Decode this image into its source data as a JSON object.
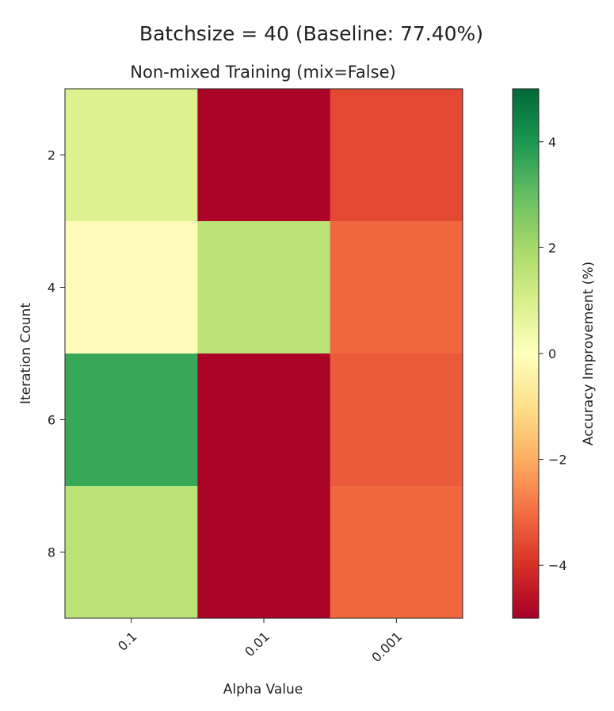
{
  "chart_data": {
    "type": "heatmap",
    "suptitle": "Batchsize = 40 (Baseline: 77.40%)",
    "title": "Non-mixed Training (mix=False)",
    "xlabel": "Alpha Value",
    "ylabel": "Iteration Count",
    "x_categories": [
      "0.1",
      "0.01",
      "0.001"
    ],
    "y_categories": [
      "2",
      "4",
      "6",
      "8"
    ],
    "values": [
      [
        0.9,
        -4.9,
        -3.6
      ],
      [
        -0.1,
        1.6,
        -3.1
      ],
      [
        3.6,
        -4.9,
        -3.3
      ],
      [
        1.6,
        -4.9,
        -3.1
      ]
    ],
    "colorbar": {
      "label": "Accuracy Improvement (%)",
      "range": [
        -5,
        5
      ],
      "ticks": [
        4,
        2,
        0,
        -2,
        -4
      ],
      "tick_labels": [
        "4",
        "2",
        "0",
        "−2",
        "−4"
      ],
      "colormap": "RdYlGn"
    }
  }
}
